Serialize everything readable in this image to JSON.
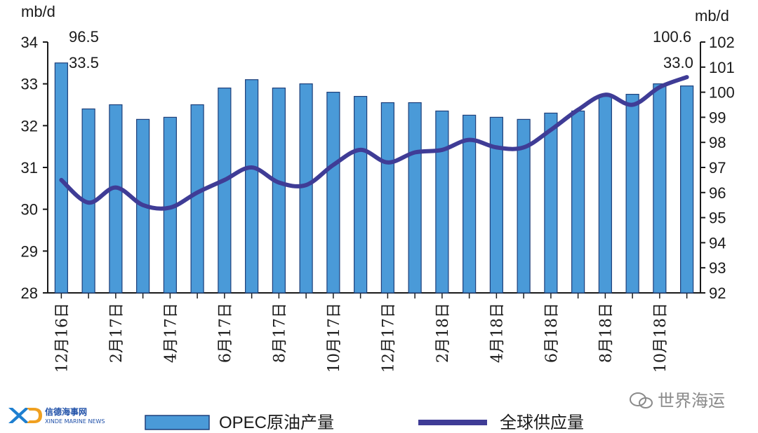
{
  "chart_data": {
    "type": "bar+line",
    "categories": [
      "12月16日",
      "",
      "2月17日",
      "",
      "4月17日",
      "",
      "6月17日",
      "",
      "8月17日",
      "",
      "10月17日",
      "",
      "12月17日",
      "",
      "2月18日",
      "",
      "4月18日",
      "",
      "6月18日",
      "",
      "8月18日",
      "",
      "10月18日",
      ""
    ],
    "series": [
      {
        "name": "OPEC原油产量",
        "type": "bar",
        "axis": "left",
        "values": [
          33.5,
          32.4,
          32.5,
          32.15,
          32.2,
          32.5,
          32.9,
          33.1,
          32.9,
          33.0,
          32.8,
          32.7,
          32.55,
          32.55,
          32.35,
          32.25,
          32.2,
          32.15,
          32.3,
          32.35,
          32.7,
          32.75,
          33.0,
          32.95
        ]
      },
      {
        "name": "全球供应量",
        "type": "line",
        "axis": "right",
        "values": [
          96.5,
          95.6,
          96.2,
          95.5,
          95.4,
          96.0,
          96.5,
          97.0,
          96.4,
          96.3,
          97.1,
          97.7,
          97.2,
          97.6,
          97.7,
          98.1,
          97.8,
          97.8,
          98.5,
          99.3,
          99.9,
          99.5,
          100.2,
          100.6
        ]
      }
    ],
    "y_left": {
      "unit": "mb/d",
      "ylim": [
        28,
        34
      ],
      "ticks": [
        28,
        29,
        30,
        31,
        32,
        33,
        34
      ]
    },
    "y_right": {
      "unit": "mb/d",
      "ylim": [
        92,
        102
      ],
      "ticks": [
        92,
        93,
        94,
        95,
        96,
        97,
        98,
        99,
        100,
        101,
        102
      ]
    },
    "annotations": {
      "start_supply": "96.5",
      "start_opec": "33.5",
      "end_supply": "100.6",
      "end_opec": "33.0"
    },
    "legend": {
      "bar_label": "OPEC原油产量",
      "line_label": "全球供应量",
      "position": "bottom"
    },
    "grid": false,
    "colors": {
      "bar_fill": "#4a9ad8",
      "bar_stroke": "#1e3f7a",
      "line": "#3f3c96",
      "axis": "#1a1a1a"
    }
  },
  "logo": {
    "brand": "信德海事网",
    "brand_en": "XINDE MARINE NEWS"
  },
  "watermark": {
    "text": "世界海运"
  }
}
